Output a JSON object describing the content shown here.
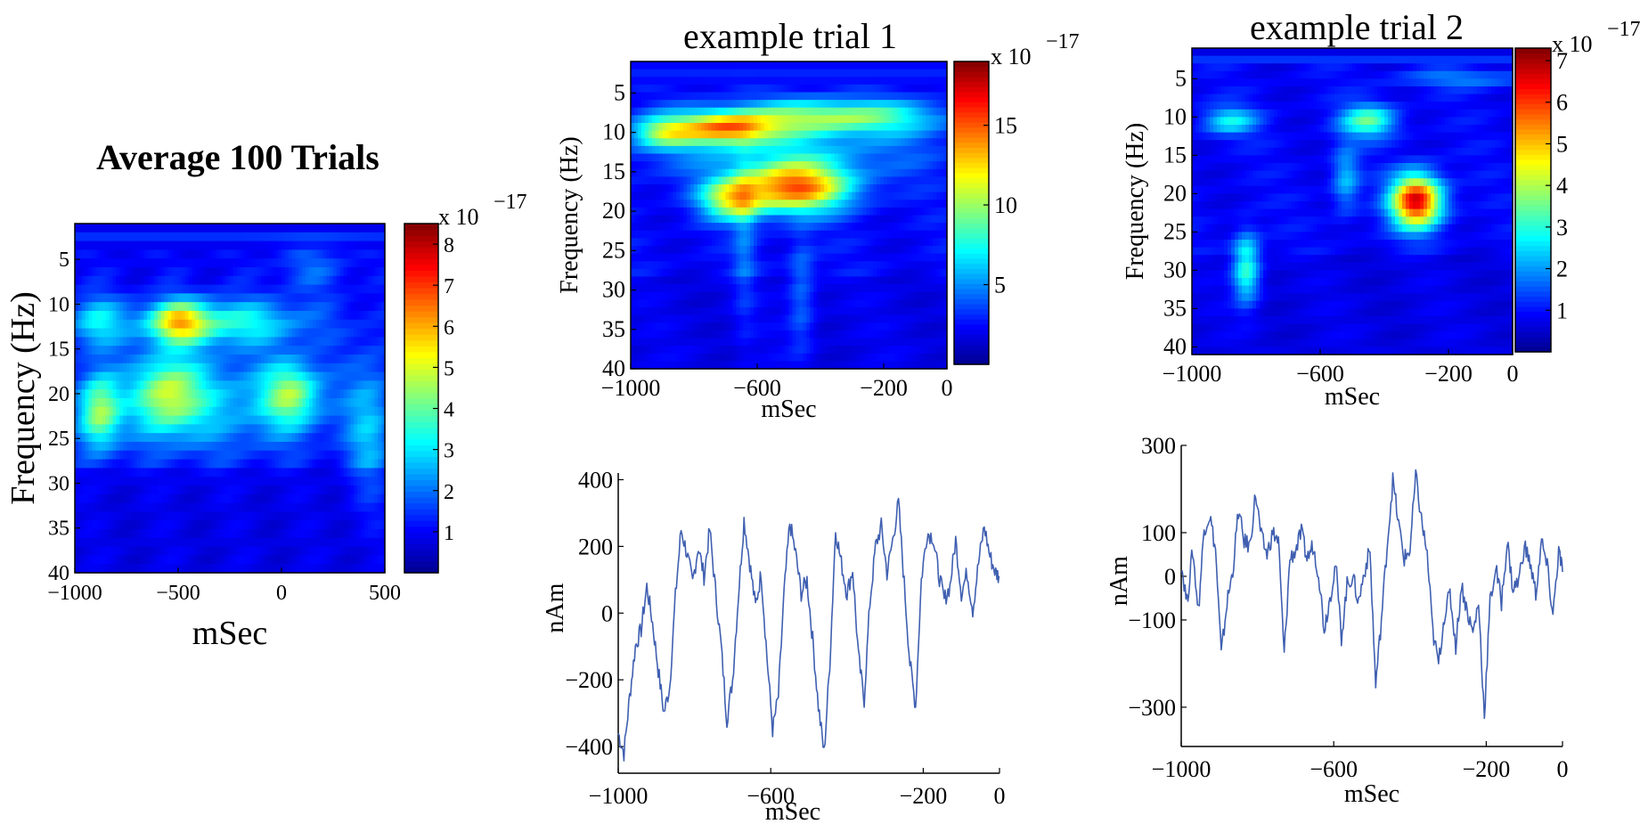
{
  "colormap": [
    "#00008f",
    "#0000ff",
    "#00ffff",
    "#ffff00",
    "#ff0000",
    "#800000"
  ],
  "line_color": "#3f5fb0",
  "chart_data": [
    {
      "type": "heatmap",
      "title": "Average 100 Trials",
      "xlabel": "mSec",
      "ylabel": "Frequency (Hz)",
      "xlim": [
        -1000,
        500
      ],
      "ylim": [
        1,
        40
      ],
      "xticks": [
        -1000,
        -500,
        0,
        500
      ],
      "xtick_labels": [
        "−1000",
        "−500",
        "0",
        "500"
      ],
      "yticks": [
        5,
        10,
        15,
        20,
        25,
        30,
        35,
        40
      ],
      "colorbar": {
        "min": 0,
        "max": 8.5,
        "ticks": [
          1,
          2,
          3,
          4,
          5,
          6,
          7,
          8
        ],
        "exponent_label": "x 10",
        "exponent": "−17"
      },
      "blobs": [
        {
          "x": -500,
          "y": 12,
          "sx": 90,
          "sy": 1.6,
          "v": 3.0
        },
        {
          "x": -300,
          "y": 12,
          "sx": 300,
          "sy": 1.8,
          "v": 2.4
        },
        {
          "x": -900,
          "y": 12,
          "sx": 90,
          "sy": 2.0,
          "v": 1.8
        },
        {
          "x": -880,
          "y": 22,
          "sx": 70,
          "sy": 3.0,
          "v": 3.2
        },
        {
          "x": -550,
          "y": 20,
          "sx": 110,
          "sy": 3.0,
          "v": 2.8
        },
        {
          "x": 50,
          "y": 20,
          "sx": 90,
          "sy": 2.5,
          "v": 2.6
        },
        {
          "x": -300,
          "y": 21,
          "sx": 380,
          "sy": 4.0,
          "v": 1.6
        },
        {
          "x": 430,
          "y": 24,
          "sx": 80,
          "sy": 6.0,
          "v": 1.5
        },
        {
          "x": 150,
          "y": 6,
          "sx": 120,
          "sy": 2.0,
          "v": 0.8
        }
      ],
      "baseline": 1.3
    },
    {
      "type": "heatmap",
      "title": "example trial 1",
      "xlabel": "mSec",
      "ylabel": "Frequency (Hz)",
      "xlim": [
        -1000,
        0
      ],
      "ylim": [
        1,
        40
      ],
      "xticks": [
        -1000,
        -600,
        -200,
        0
      ],
      "xtick_labels": [
        "−1000",
        "−600",
        "−200",
        "0"
      ],
      "yticks": [
        5,
        10,
        15,
        20,
        25,
        30,
        35,
        40
      ],
      "colorbar": {
        "min": 0,
        "max": 19,
        "ticks": [
          5,
          10,
          15
        ],
        "exponent_label": "x 10",
        "exponent": "−17"
      },
      "blobs": [
        {
          "x": -480,
          "y": 17,
          "sx": 120,
          "sy": 2.2,
          "v": 12
        },
        {
          "x": -680,
          "y": 18.5,
          "sx": 70,
          "sy": 1.8,
          "v": 8
        },
        {
          "x": -700,
          "y": 9.5,
          "sx": 110,
          "sy": 1.4,
          "v": 10
        },
        {
          "x": -350,
          "y": 8,
          "sx": 220,
          "sy": 1.5,
          "v": 7
        },
        {
          "x": -900,
          "y": 10,
          "sx": 70,
          "sy": 1.4,
          "v": 6
        },
        {
          "x": -500,
          "y": 12,
          "sx": 320,
          "sy": 3.0,
          "v": 3
        },
        {
          "x": -640,
          "y": 25,
          "sx": 25,
          "sy": 8.0,
          "v": 2
        },
        {
          "x": -460,
          "y": 31,
          "sx": 30,
          "sy": 5.0,
          "v": 3
        }
      ],
      "baseline": 3.0
    },
    {
      "type": "heatmap",
      "title": "example trial 2",
      "xlabel": "mSec",
      "ylabel": "Frequency (Hz)",
      "xlim": [
        -1000,
        0
      ],
      "ylim": [
        1,
        41
      ],
      "xticks": [
        -1000,
        -600,
        -200,
        0
      ],
      "xtick_labels": [
        "−1000",
        "−600",
        "−200",
        "0"
      ],
      "yticks": [
        5,
        10,
        15,
        20,
        25,
        30,
        35,
        40
      ],
      "colorbar": {
        "min": 0,
        "max": 7.3,
        "ticks": [
          1,
          2,
          3,
          4,
          5,
          6,
          7
        ],
        "exponent_label": "x 10",
        "exponent": "−17"
      },
      "blobs": [
        {
          "x": -300,
          "y": 21,
          "sx": 55,
          "sy": 2.4,
          "v": 5.8
        },
        {
          "x": -830,
          "y": 30,
          "sx": 30,
          "sy": 3.0,
          "v": 3.0
        },
        {
          "x": -450,
          "y": 10.5,
          "sx": 60,
          "sy": 1.5,
          "v": 2.5
        },
        {
          "x": -880,
          "y": 10.5,
          "sx": 60,
          "sy": 1.3,
          "v": 1.8
        },
        {
          "x": -520,
          "y": 18,
          "sx": 30,
          "sy": 3.0,
          "v": 1.4
        },
        {
          "x": -150,
          "y": 5,
          "sx": 150,
          "sy": 0.8,
          "v": 1.0
        }
      ],
      "baseline": 1.1
    },
    {
      "type": "line",
      "xlabel": "mSec",
      "ylabel": "nAm",
      "xlim": [
        -1000,
        0
      ],
      "ylim": [
        -480,
        420
      ],
      "xticks": [
        -1000,
        -600,
        -200,
        0
      ],
      "xtick_labels": [
        "−1000",
        "−600",
        "−200",
        "0"
      ],
      "yticks": [
        -400,
        -200,
        0,
        200,
        400
      ],
      "ytick_labels": [
        "−400",
        "−200",
        "0",
        "200",
        "400"
      ],
      "series": [
        {
          "x": [
            -1000,
            -985,
            -970,
            -955,
            -940,
            -925,
            -910,
            -895,
            -880,
            -865,
            -850,
            -835,
            -820,
            -805,
            -790,
            -775,
            -760,
            -745,
            -730,
            -715,
            -700,
            -685,
            -670,
            -655,
            -640,
            -625,
            -610,
            -595,
            -580,
            -565,
            -550,
            -535,
            -520,
            -505,
            -490,
            -475,
            -460,
            -445,
            -430,
            -415,
            -400,
            -385,
            -370,
            -355,
            -340,
            -325,
            -310,
            -295,
            -280,
            -265,
            -250,
            -235,
            -220,
            -205,
            -190,
            -175,
            -160,
            -145,
            -130,
            -115,
            -100,
            -85,
            -70,
            -55,
            -40,
            -25,
            -10,
            0
          ],
          "y": [
            -360,
            -420,
            -250,
            -100,
            -50,
            80,
            -30,
            -170,
            -300,
            -220,
            50,
            250,
            180,
            90,
            200,
            110,
            250,
            70,
            -100,
            -320,
            -200,
            50,
            280,
            150,
            20,
            120,
            -130,
            -350,
            -250,
            60,
            270,
            180,
            60,
            100,
            -80,
            -280,
            -420,
            -150,
            250,
            150,
            60,
            130,
            -130,
            -260,
            30,
            200,
            260,
            120,
            220,
            330,
            90,
            -150,
            -280,
            100,
            240,
            230,
            120,
            40,
            80,
            220,
            60,
            120,
            10,
            150,
            260,
            170,
            120,
            110
          ]
        }
      ]
    },
    {
      "type": "line",
      "xlabel": "mSec",
      "ylabel": "nAm",
      "xlim": [
        -1000,
        0
      ],
      "ylim": [
        -390,
        300
      ],
      "xticks": [
        -1000,
        -600,
        -200,
        0
      ],
      "xtick_labels": [
        "−1000",
        "−600",
        "−200",
        "0"
      ],
      "yticks": [
        -300,
        -100,
        0,
        100,
        300
      ],
      "ytick_labels": [
        "−300",
        "−100",
        "0",
        "100",
        "300"
      ],
      "series": [
        {
          "x": [
            -1000,
            -985,
            -970,
            -955,
            -940,
            -925,
            -910,
            -895,
            -880,
            -865,
            -850,
            -835,
            -820,
            -805,
            -790,
            -775,
            -760,
            -745,
            -730,
            -715,
            -700,
            -685,
            -670,
            -655,
            -640,
            -625,
            -610,
            -595,
            -580,
            -565,
            -550,
            -535,
            -520,
            -505,
            -490,
            -475,
            -460,
            -445,
            -430,
            -415,
            -400,
            -385,
            -370,
            -355,
            -340,
            -325,
            -310,
            -295,
            -280,
            -265,
            -250,
            -235,
            -220,
            -205,
            -190,
            -175,
            -160,
            -145,
            -130,
            -115,
            -100,
            -85,
            -70,
            -55,
            -40,
            -25,
            -10,
            0
          ],
          "y": [
            30,
            -60,
            60,
            -80,
            110,
            140,
            60,
            -180,
            -60,
            10,
            150,
            80,
            70,
            190,
            90,
            50,
            100,
            80,
            -180,
            40,
            60,
            100,
            40,
            70,
            10,
            -120,
            -50,
            30,
            -140,
            -20,
            0,
            -60,
            10,
            60,
            -250,
            -100,
            70,
            220,
            120,
            40,
            60,
            230,
            130,
            50,
            -130,
            -200,
            -90,
            -40,
            -160,
            -20,
            -80,
            -130,
            -60,
            -320,
            -60,
            20,
            -60,
            80,
            -30,
            -10,
            70,
            30,
            -40,
            80,
            20,
            -90,
            60,
            10
          ]
        }
      ]
    }
  ]
}
